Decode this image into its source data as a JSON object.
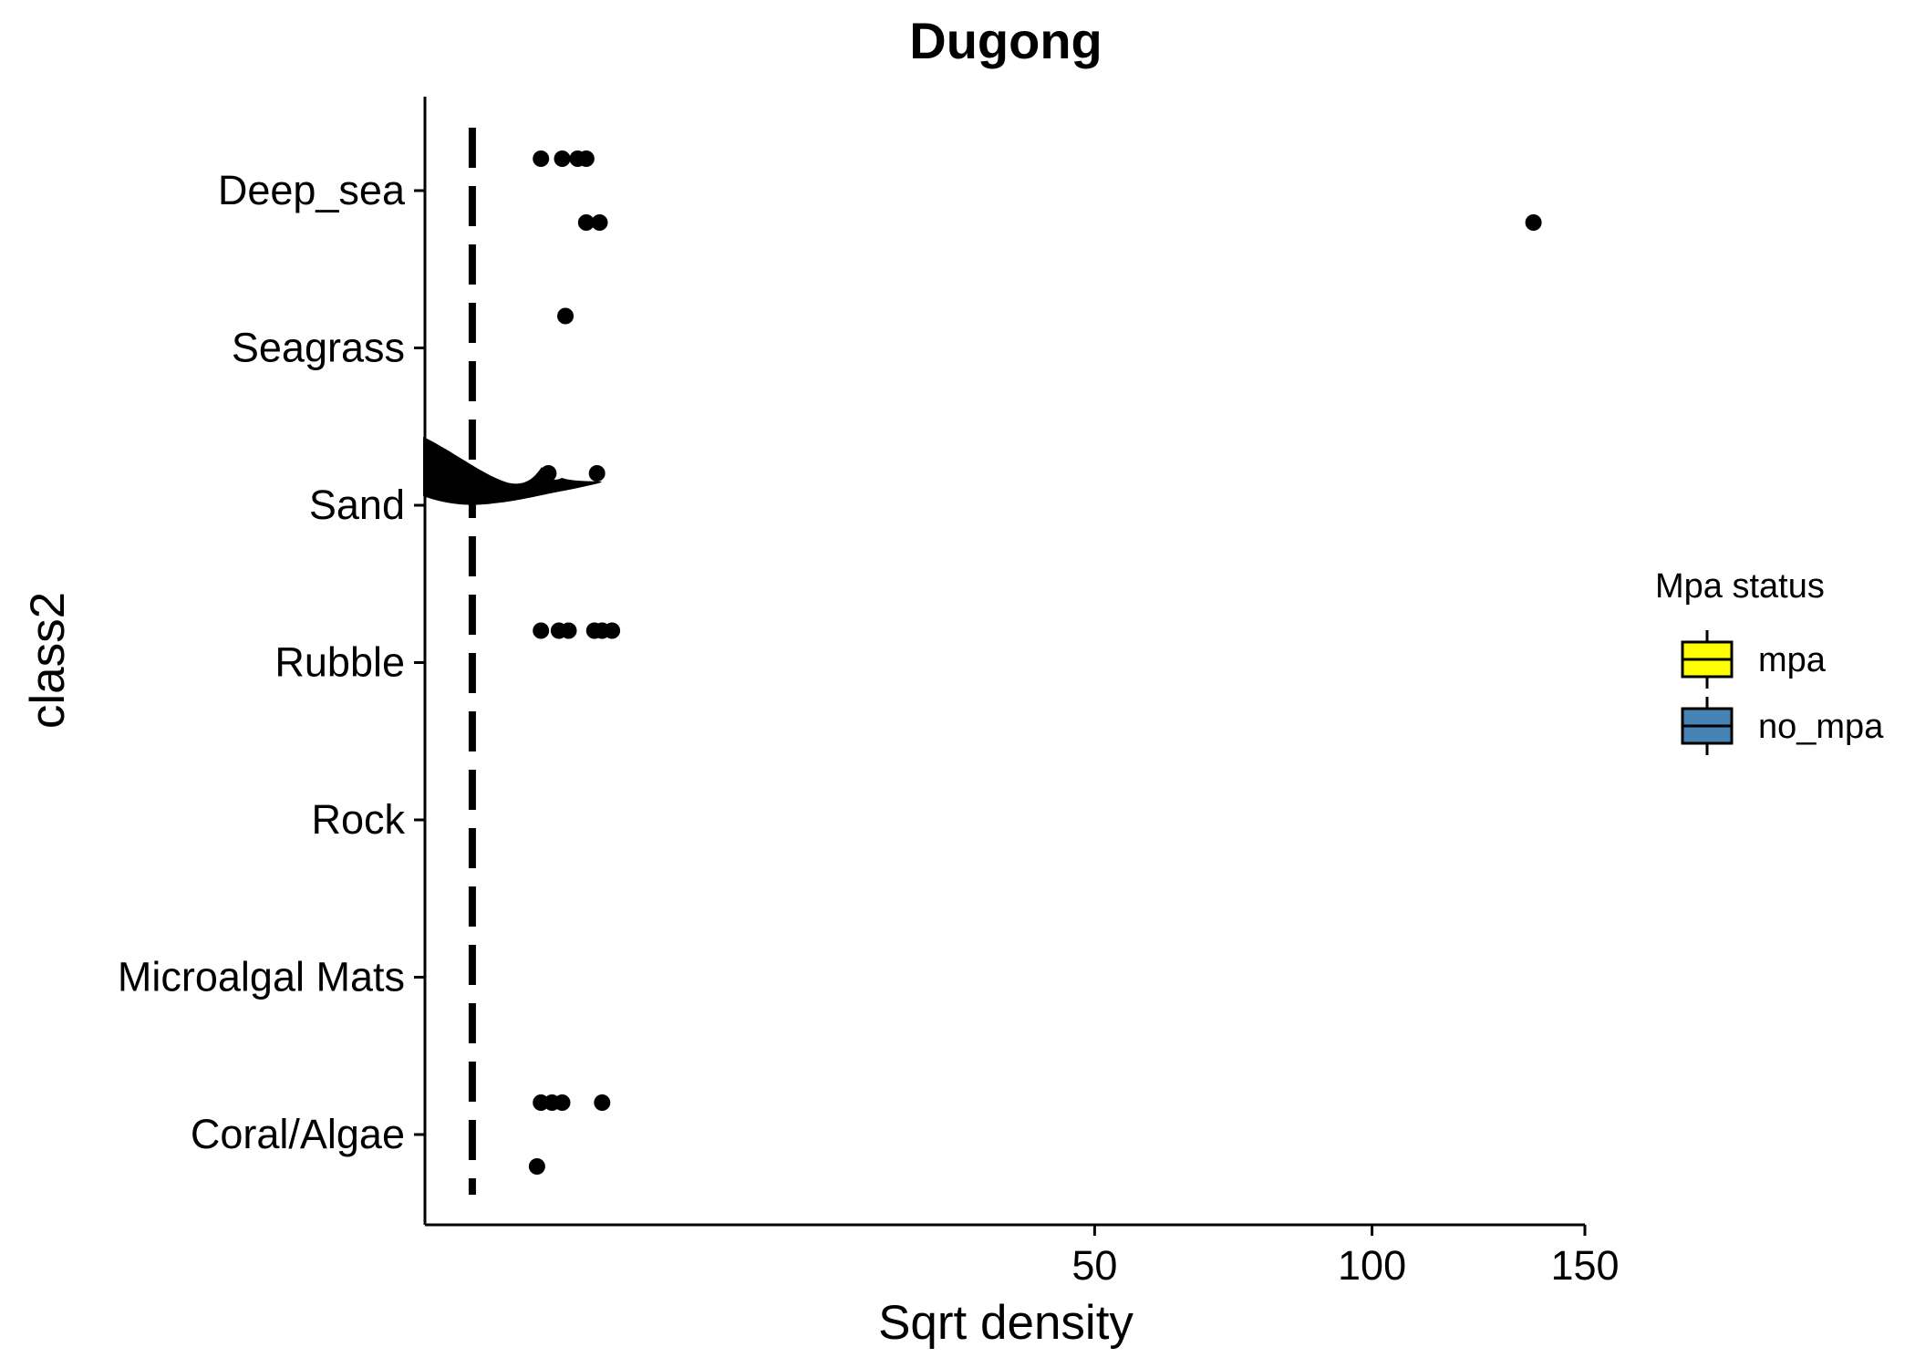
{
  "chart_data": {
    "type": "scatter",
    "title": "Dugong",
    "xlabel": "Sqrt density",
    "ylabel": "class2",
    "x_scale": "sqrt",
    "xlim": [
      0,
      150
    ],
    "x_ticks": [
      50,
      100,
      150
    ],
    "x_tick_labels": [
      "50",
      "100",
      "150"
    ],
    "categories": [
      "Deep_sea",
      "Seagrass",
      "Sand",
      "Rubble",
      "Rock",
      "Microalgal Mats",
      "Coral/Algae"
    ],
    "reference_line": {
      "x": 0.25,
      "style": "dashed",
      "color": "#000000"
    },
    "legend": {
      "title": "Mpa status",
      "position": "right",
      "items": [
        {
          "label": "mpa",
          "color": "#FFFF00"
        },
        {
          "label": "no_mpa",
          "color": "#4682B4"
        }
      ]
    },
    "series": [
      {
        "name": "mpa",
        "color": "#FFFF00",
        "points": [
          {
            "category": "Deep_sea",
            "x": 1.5
          },
          {
            "category": "Deep_sea",
            "x": 2.1
          },
          {
            "category": "Deep_sea",
            "x": 2.6
          },
          {
            "category": "Deep_sea",
            "x": 2.9
          },
          {
            "category": "Seagrass",
            "x": 2.2
          },
          {
            "category": "Sand",
            "x": 1.7
          },
          {
            "category": "Sand",
            "x": 3.3
          },
          {
            "category": "Rubble",
            "x": 1.5
          },
          {
            "category": "Rubble",
            "x": 2.0
          },
          {
            "category": "Rubble",
            "x": 2.3
          },
          {
            "category": "Rubble",
            "x": 3.2
          },
          {
            "category": "Rubble",
            "x": 3.5
          },
          {
            "category": "Rubble",
            "x": 3.9
          },
          {
            "category": "Coral/Algae",
            "x": 1.5
          },
          {
            "category": "Coral/Algae",
            "x": 1.8
          },
          {
            "category": "Coral/Algae",
            "x": 2.1
          },
          {
            "category": "Coral/Algae",
            "x": 3.5
          }
        ]
      },
      {
        "name": "no_mpa",
        "color": "#4682B4",
        "points": [
          {
            "category": "Deep_sea",
            "x": 2.9
          },
          {
            "category": "Deep_sea",
            "x": 3.4
          },
          {
            "category": "Deep_sea",
            "x": 137
          },
          {
            "category": "Coral/Algae",
            "x": 1.4
          }
        ]
      }
    ]
  }
}
